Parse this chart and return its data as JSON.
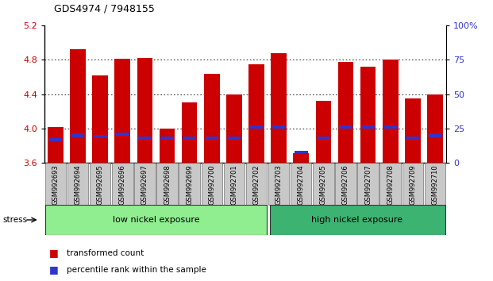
{
  "title": "GDS4974 / 7948155",
  "samples": [
    "GSM992693",
    "GSM992694",
    "GSM992695",
    "GSM992696",
    "GSM992697",
    "GSM992698",
    "GSM992699",
    "GSM992700",
    "GSM992701",
    "GSM992702",
    "GSM992703",
    "GSM992704",
    "GSM992705",
    "GSM992706",
    "GSM992707",
    "GSM992708",
    "GSM992709",
    "GSM992710"
  ],
  "transformed_count": [
    4.02,
    4.92,
    4.62,
    4.81,
    4.82,
    4.0,
    4.3,
    4.64,
    4.4,
    4.75,
    4.88,
    3.71,
    4.32,
    4.77,
    4.72,
    4.8,
    4.35,
    4.4
  ],
  "percentile_rank": [
    17,
    20,
    19,
    21,
    18,
    18,
    18,
    18,
    18,
    26,
    26,
    8,
    18,
    26,
    26,
    26,
    18,
    20
  ],
  "y_min": 3.6,
  "y_max": 5.2,
  "y_ticks": [
    3.6,
    4.0,
    4.4,
    4.8,
    5.2
  ],
  "right_y_ticks": [
    0,
    25,
    50,
    75,
    100
  ],
  "bar_color": "#cc0000",
  "blue_color": "#3333cc",
  "group1_label": "low nickel exposure",
  "group2_label": "high nickel exposure",
  "group1_count": 10,
  "group2_count": 8,
  "stress_label": "stress",
  "legend1": "transformed count",
  "legend2": "percentile rank within the sample",
  "tick_label_color_left": "#cc0000",
  "tick_label_color_right": "#3333cc",
  "group1_bg": "#90ee90",
  "group2_bg": "#3cb371",
  "xticklabel_bg": "#c8c8c8"
}
